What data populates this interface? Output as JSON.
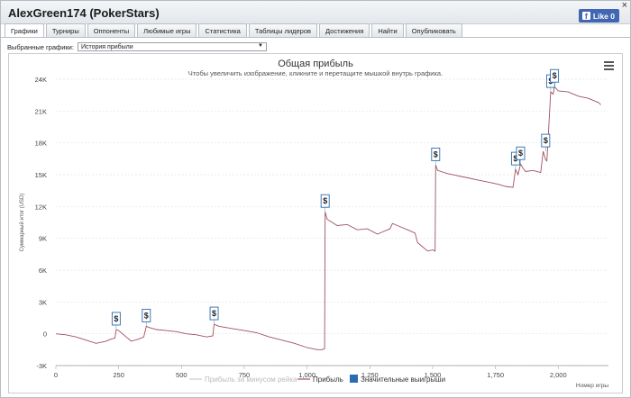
{
  "window": {
    "title": "AlexGreen174 (PokerStars)",
    "like_label": "Like 0",
    "fb_glyph": "f",
    "close_glyph": "×"
  },
  "tabs": [
    {
      "label": "Графики",
      "active": true
    },
    {
      "label": "Турниры",
      "active": false
    },
    {
      "label": "Оппоненты",
      "active": false
    },
    {
      "label": "Любимые игры",
      "active": false
    },
    {
      "label": "Статистика",
      "active": false
    },
    {
      "label": "Таблицы лидеров",
      "active": false
    },
    {
      "label": "Достижения",
      "active": false
    },
    {
      "label": "Найти",
      "active": false
    },
    {
      "label": "Опубликовать",
      "active": false
    }
  ],
  "chart_selector": {
    "label": "Выбранные графики:",
    "value": "История прибыли"
  },
  "chart_data": {
    "type": "line",
    "title": "Общая прибыль",
    "subtitle": "Чтобы увеличить изображение, кликните и перетащите мышкой внутрь графика.",
    "xlabel": "Номер игры",
    "ylabel": "Суммарный итог (USD)",
    "xlim": [
      0,
      2200
    ],
    "ylim": [
      -3000,
      24000
    ],
    "x_ticks": [
      0,
      250,
      500,
      750,
      1000,
      1250,
      1500,
      1750,
      2000
    ],
    "x_tick_labels": [
      "0",
      "250",
      "500",
      "750",
      "1,000",
      "1,250",
      "1,500",
      "1,750",
      "2,000"
    ],
    "y_ticks": [
      -3000,
      0,
      3000,
      6000,
      9000,
      12000,
      15000,
      18000,
      21000,
      24000
    ],
    "y_tick_labels": [
      "-3K",
      "0",
      "3K",
      "6K",
      "9K",
      "12K",
      "15K",
      "18K",
      "21K",
      "24K"
    ],
    "grid": true,
    "legend": {
      "placement": "bottom-center",
      "items": [
        {
          "name": "Прибыль за минусом рейка",
          "color": "#cccccc"
        },
        {
          "name": "Прибыль",
          "color": "#a05060"
        },
        {
          "name": "Значительные выигрыши",
          "color": "#2b6cb0"
        }
      ]
    },
    "series": [
      {
        "name": "Прибыль",
        "color": "#a05060",
        "x": [
          0,
          40,
          80,
          120,
          160,
          200,
          220,
          235,
          240,
          250,
          280,
          300,
          330,
          350,
          360,
          370,
          400,
          440,
          480,
          520,
          560,
          600,
          625,
          630,
          650,
          700,
          750,
          800,
          850,
          900,
          950,
          1000,
          1040,
          1060,
          1070,
          1072,
          1080,
          1120,
          1160,
          1200,
          1240,
          1280,
          1300,
          1330,
          1340,
          1360,
          1400,
          1430,
          1440,
          1460,
          1480,
          1500,
          1510,
          1512,
          1520,
          1560,
          1600,
          1640,
          1680,
          1720,
          1760,
          1790,
          1820,
          1830,
          1840,
          1850,
          1860,
          1870,
          1900,
          1930,
          1940,
          1950,
          1955,
          1970,
          1980,
          1985,
          2000,
          2040,
          2080,
          2120,
          2160,
          2170
        ],
        "y": [
          0,
          -100,
          -300,
          -600,
          -900,
          -700,
          -500,
          -400,
          400,
          300,
          -300,
          -700,
          -500,
          -300,
          700,
          600,
          400,
          300,
          200,
          0,
          -100,
          -300,
          -200,
          900,
          700,
          500,
          300,
          100,
          -300,
          -600,
          -900,
          -1300,
          -1500,
          -1500,
          -1400,
          11500,
          10800,
          10200,
          10300,
          9800,
          9900,
          9400,
          9600,
          9900,
          10400,
          10200,
          9800,
          9500,
          8600,
          8200,
          7800,
          7900,
          7800,
          15900,
          15400,
          15100,
          14900,
          14700,
          14500,
          14300,
          14100,
          13900,
          13800,
          15500,
          15000,
          16000,
          15600,
          15300,
          15400,
          15200,
          17200,
          16400,
          16300,
          22800,
          22600,
          23300,
          22900,
          22800,
          22400,
          22200,
          21800,
          21600
        ]
      },
      {
        "name": "Значительные выигрыши",
        "color": "#2b6cb0",
        "marker_label": "$",
        "x": [
          240,
          360,
          630,
          1072,
          1512,
          1830,
          1850,
          1950,
          1970,
          1985
        ],
        "y": [
          400,
          700,
          900,
          11500,
          15900,
          15500,
          16000,
          17200,
          22800,
          23300
        ]
      }
    ]
  }
}
